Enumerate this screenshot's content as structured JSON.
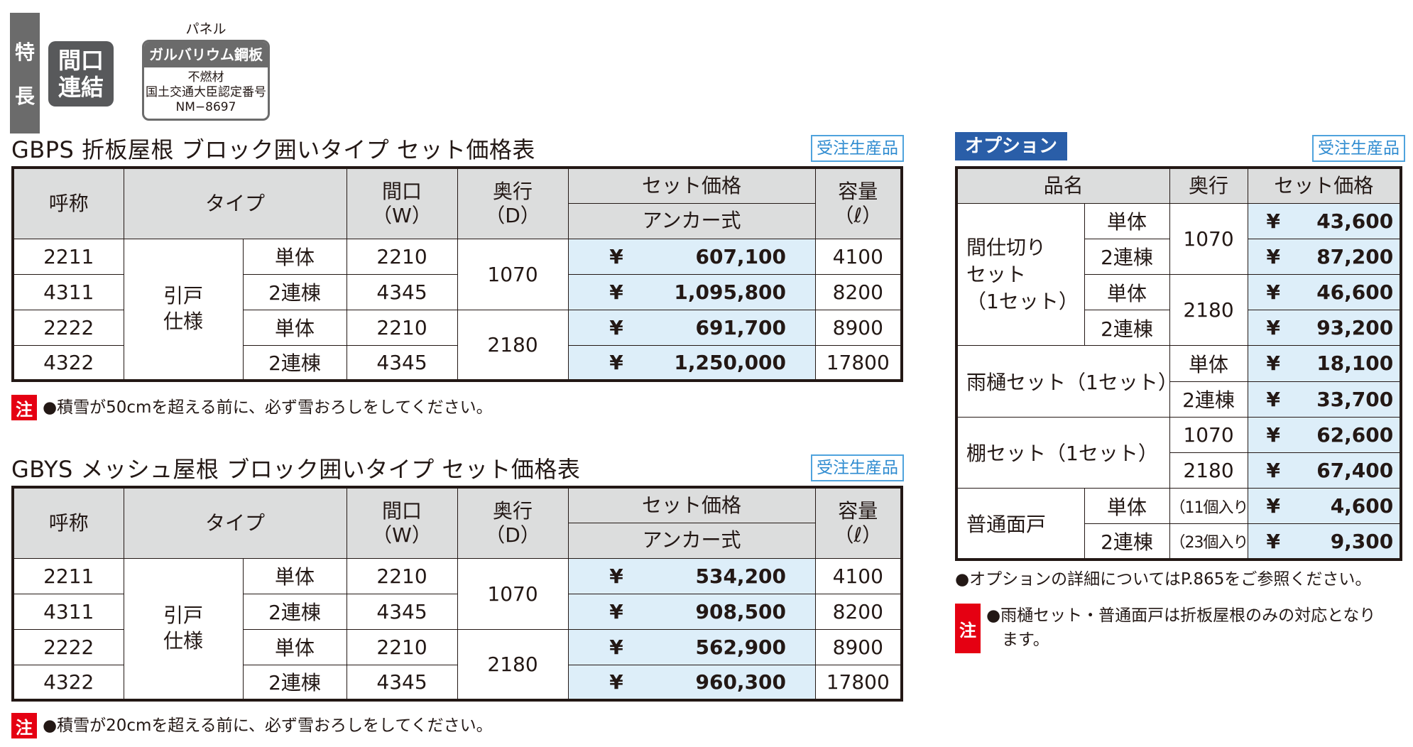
{
  "features": {
    "vertical_label": [
      "特",
      "長"
    ],
    "frontage_badge": [
      "間口",
      "連結"
    ],
    "panel_caption": "パネル",
    "panel_head": "ガルバリウム鋼板",
    "panel_lines": [
      "不燃材",
      "国土交通大臣認定番号",
      "NM−8697"
    ]
  },
  "made_to_order": "受注生産品",
  "headers": {
    "name": "呼称",
    "type": "タイプ",
    "width_1": "間口",
    "width_2": "（W）",
    "depth_1": "奥行",
    "depth_2": "（D）",
    "set_price": "セット価格",
    "anchor": "アンカー式",
    "capacity_1": "容量",
    "capacity_2": "（ℓ）"
  },
  "type_door": [
    "引戸",
    "仕様"
  ],
  "yen": "¥",
  "table1": {
    "title": "GBPS 折板屋根 ブロック囲いタイプ セット価格表",
    "rows": [
      {
        "name": "2211",
        "unit": "単体",
        "width": "2210",
        "price": "607,100",
        "capacity": "4100"
      },
      {
        "name": "4311",
        "unit": "2連棟",
        "width": "4345",
        "price": "1,095,800",
        "capacity": "8200"
      },
      {
        "name": "2222",
        "unit": "単体",
        "width": "2210",
        "price": "691,700",
        "capacity": "8900"
      },
      {
        "name": "4322",
        "unit": "2連棟",
        "width": "4345",
        "price": "1,250,000",
        "capacity": "17800"
      }
    ],
    "depths": [
      "1070",
      "2180"
    ],
    "note_mark": "注",
    "note": "●積雪が50cmを超える前に、必ず雪おろしをしてください。"
  },
  "table2": {
    "title": "GBYS メッシュ屋根 ブロック囲いタイプ セット価格表",
    "rows": [
      {
        "name": "2211",
        "unit": "単体",
        "width": "2210",
        "price": "534,200",
        "capacity": "4100"
      },
      {
        "name": "4311",
        "unit": "2連棟",
        "width": "4345",
        "price": "908,500",
        "capacity": "8200"
      },
      {
        "name": "2222",
        "unit": "単体",
        "width": "2210",
        "price": "562,900",
        "capacity": "8900"
      },
      {
        "name": "4322",
        "unit": "2連棟",
        "width": "4345",
        "price": "960,300",
        "capacity": "17800"
      }
    ],
    "depths": [
      "1070",
      "2180"
    ],
    "note_mark": "注",
    "note": "●積雪が20cmを超える前に、必ず雪おろしをしてください。"
  },
  "options": {
    "label": "オプション",
    "headers": {
      "item": "品名",
      "depth": "奥行",
      "set_price": "セット価格"
    },
    "partition": {
      "name": [
        "間仕切り",
        "セット",
        "（1セット）"
      ],
      "depths": [
        "1070",
        "2180"
      ],
      "rows": [
        {
          "unit": "単体",
          "price": "43,600"
        },
        {
          "unit": "2連棟",
          "price": "87,200"
        },
        {
          "unit": "単体",
          "price": "46,600"
        },
        {
          "unit": "2連棟",
          "price": "93,200"
        }
      ]
    },
    "gutter": {
      "name": "雨樋セット（1セット）",
      "rows": [
        {
          "unit": "単体",
          "price": "18,100"
        },
        {
          "unit": "2連棟",
          "price": "33,700"
        }
      ]
    },
    "shelf": {
      "name": "棚セット（1セット）",
      "rows": [
        {
          "depth": "1070",
          "price": "62,600"
        },
        {
          "depth": "2180",
          "price": "67,400"
        }
      ]
    },
    "panel": {
      "name": "普通面戸",
      "rows": [
        {
          "unit": "単体",
          "qty": "（11個入り）",
          "price": "4,600"
        },
        {
          "unit": "2連棟",
          "qty": "（23個入り）",
          "price": "9,300"
        }
      ]
    },
    "note_ref": "●オプションの詳細についてはP.865をご参照ください。",
    "note_mark": "注",
    "note_line1": "●雨樋セット・普通面戸は折板屋根のみの対応となり",
    "note_line2": "ます。"
  }
}
